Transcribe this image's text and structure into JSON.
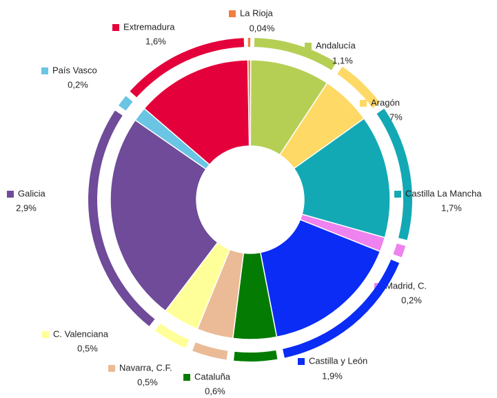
{
  "chart_data": {
    "type": "pie",
    "categories": [
      "La Rioja",
      "Andalucía",
      "Aragón",
      "Castilla La Mancha",
      "Madrid, C.",
      "Castilla y León",
      "Cataluña",
      "Navarra, C.F.",
      "C. Valenciana",
      "Galicia",
      "País Vasco",
      "Extremadura"
    ],
    "values": [
      0.04,
      1.1,
      0.7,
      1.7,
      0.2,
      1.9,
      0.6,
      0.5,
      0.5,
      2.9,
      0.2,
      1.6
    ],
    "value_labels": [
      "0,04%",
      "1,1%",
      "0,7%",
      "1,7%",
      "0,2%",
      "1,9%",
      "0,6%",
      "0,5%",
      "0,5%",
      "2,9%",
      "0,2%",
      "1,6%"
    ],
    "colors": [
      "#f07f3c",
      "#b5cf55",
      "#ffd966",
      "#12a9b5",
      "#ee82ee",
      "#0a2cf5",
      "#047c04",
      "#eabb96",
      "#ffff99",
      "#6f4b9a",
      "#6ac4e3",
      "#e4003a"
    ]
  }
}
